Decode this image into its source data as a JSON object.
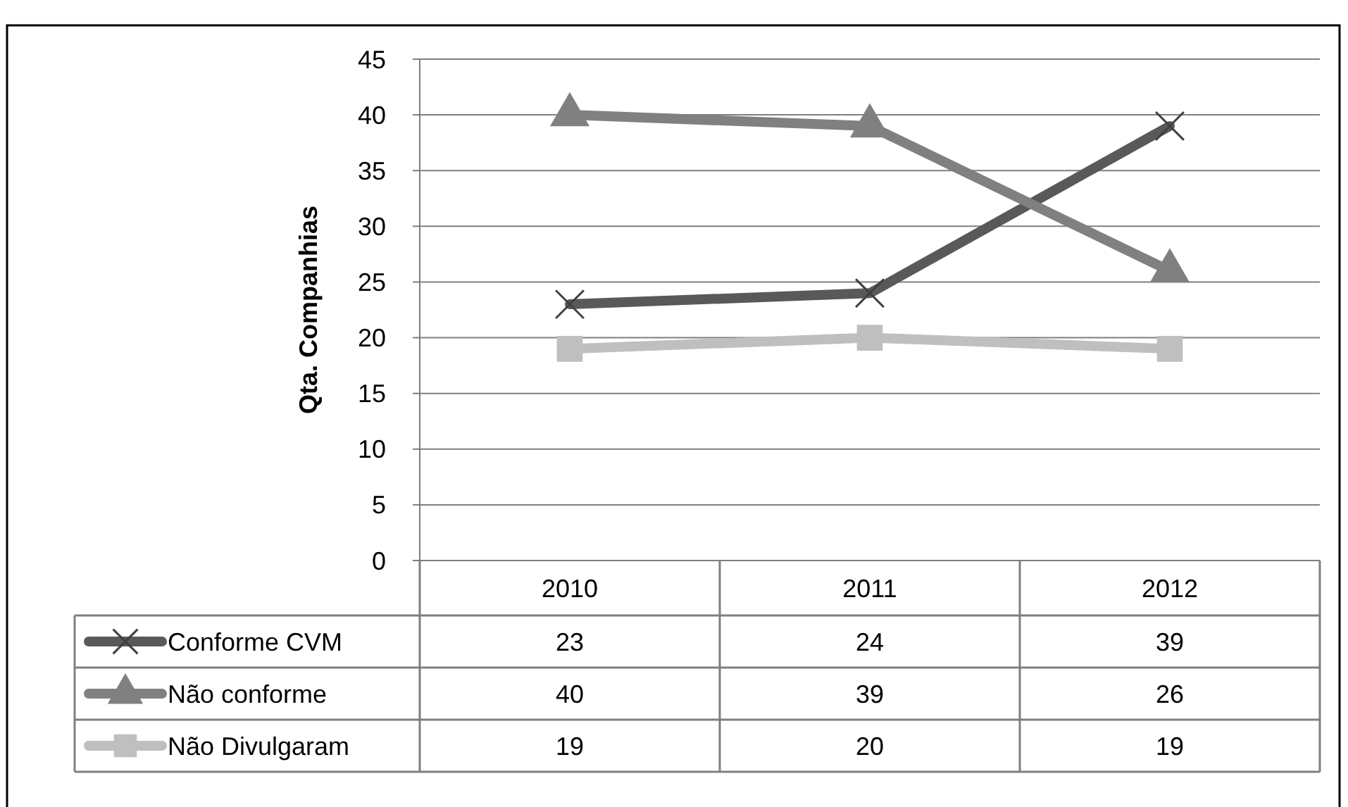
{
  "chart_data": {
    "type": "line",
    "ylabel": "Qta. Companhias",
    "categories": [
      "2010",
      "2011",
      "2012"
    ],
    "series": [
      {
        "name": "Conforme CVM",
        "color": "#595959",
        "marker": "cross",
        "values": [
          23,
          24,
          39
        ]
      },
      {
        "name": "Não conforme",
        "color": "#808080",
        "marker": "triangle",
        "values": [
          40,
          39,
          26
        ]
      },
      {
        "name": "Não Divulgaram",
        "color": "#bfbfbf",
        "marker": "square",
        "values": [
          19,
          20,
          19
        ]
      }
    ],
    "ylim": [
      0,
      45
    ],
    "yticks": [
      0,
      5,
      10,
      15,
      20,
      25,
      30,
      35,
      40,
      45
    ],
    "grid": "y",
    "legend": "bottom",
    "data_labels": true
  }
}
